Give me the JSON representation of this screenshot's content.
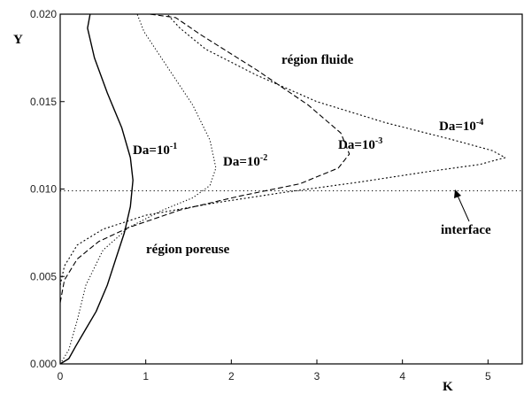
{
  "chart_data": {
    "type": "line",
    "xlabel": "K",
    "ylabel": "Y",
    "xlim": [
      0,
      5.4
    ],
    "ylim": [
      0.0,
      0.02
    ],
    "x_ticks": [
      "0",
      "1",
      "2",
      "3",
      "4",
      "5"
    ],
    "x_tick_values": [
      0,
      1,
      2,
      3,
      4,
      5
    ],
    "y_ticks": [
      "0.000",
      "0.005",
      "0.010",
      "0.015",
      "0.020"
    ],
    "y_tick_values": [
      0.0,
      0.005,
      0.01,
      0.015,
      0.02
    ],
    "grid": false,
    "legend": "none",
    "interface_y": 0.0099,
    "annotations": {
      "region_fluid": "région fluide",
      "region_porous": "région poreuse",
      "interface": "interface",
      "da1_base": "Da=10",
      "da1_exp": "-1",
      "da2_base": "Da=10",
      "da2_exp": "-2",
      "da3_base": "Da=10",
      "da3_exp": "-3",
      "da4_base": "Da=10",
      "da4_exp": "-4"
    },
    "series": [
      {
        "style": "solid",
        "points": [
          [
            0.0,
            0.0
          ],
          [
            0.1,
            0.0003
          ],
          [
            0.18,
            0.001
          ],
          [
            0.3,
            0.002
          ],
          [
            0.42,
            0.003
          ],
          [
            0.55,
            0.0045
          ],
          [
            0.65,
            0.006
          ],
          [
            0.75,
            0.0075
          ],
          [
            0.82,
            0.009
          ],
          [
            0.85,
            0.0105
          ],
          [
            0.82,
            0.0118
          ],
          [
            0.72,
            0.0135
          ],
          [
            0.55,
            0.0155
          ],
          [
            0.4,
            0.0175
          ],
          [
            0.32,
            0.0192
          ],
          [
            0.35,
            0.02
          ]
        ]
      },
      {
        "style": "dotted",
        "points": [
          [
            0.0,
            0.0
          ],
          [
            0.1,
            0.0008
          ],
          [
            0.2,
            0.0025
          ],
          [
            0.3,
            0.0045
          ],
          [
            0.5,
            0.0065
          ],
          [
            0.8,
            0.0078
          ],
          [
            1.2,
            0.0088
          ],
          [
            1.55,
            0.0095
          ],
          [
            1.75,
            0.0102
          ],
          [
            1.82,
            0.0112
          ],
          [
            1.75,
            0.0128
          ],
          [
            1.55,
            0.0148
          ],
          [
            1.25,
            0.017
          ],
          [
            0.98,
            0.019
          ],
          [
            0.9,
            0.02
          ]
        ]
      },
      {
        "style": "dashed",
        "points": [
          [
            0.0,
            0.0035
          ],
          [
            0.05,
            0.0048
          ],
          [
            0.2,
            0.006
          ],
          [
            0.45,
            0.007
          ],
          [
            0.8,
            0.0078
          ],
          [
            1.4,
            0.0088
          ],
          [
            2.1,
            0.0096
          ],
          [
            2.8,
            0.0103
          ],
          [
            3.25,
            0.0112
          ],
          [
            3.38,
            0.012
          ],
          [
            3.28,
            0.0132
          ],
          [
            2.9,
            0.0148
          ],
          [
            2.3,
            0.0168
          ],
          [
            1.65,
            0.0188
          ],
          [
            1.35,
            0.0198
          ],
          [
            1.05,
            0.02
          ]
        ]
      },
      {
        "style": "short-dot",
        "points": [
          [
            0.0,
            0.0045
          ],
          [
            0.05,
            0.0056
          ],
          [
            0.2,
            0.0068
          ],
          [
            0.5,
            0.0077
          ],
          [
            1.0,
            0.0085
          ],
          [
            1.8,
            0.0092
          ],
          [
            2.6,
            0.0098
          ],
          [
            3.5,
            0.0104
          ],
          [
            4.3,
            0.011
          ],
          [
            4.9,
            0.0114
          ],
          [
            5.2,
            0.0118
          ],
          [
            5.05,
            0.0122
          ],
          [
            4.6,
            0.0128
          ],
          [
            3.8,
            0.0138
          ],
          [
            3.0,
            0.015
          ],
          [
            2.3,
            0.0165
          ],
          [
            1.7,
            0.018
          ],
          [
            1.4,
            0.0192
          ],
          [
            1.25,
            0.02
          ]
        ]
      }
    ]
  }
}
